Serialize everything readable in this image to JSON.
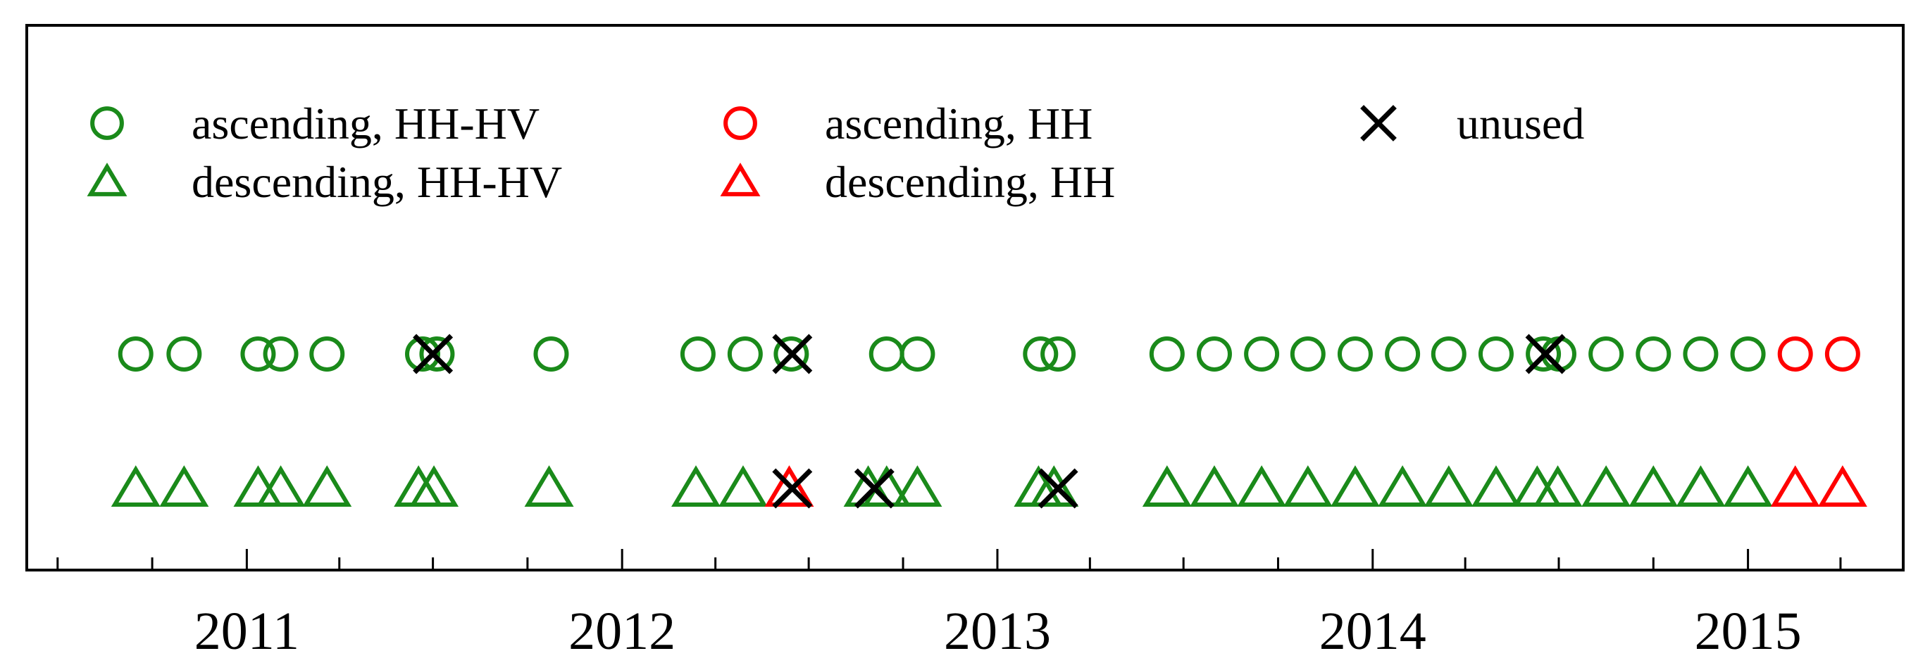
{
  "chart_data": {
    "type": "scatter",
    "title": "",
    "xlabel": "",
    "ylabel": "",
    "x_axis": {
      "type": "date",
      "range": [
        "2010-06-01",
        "2015-06-01"
      ],
      "tick_labels": [
        "2011",
        "2012",
        "2013",
        "2014",
        "2015"
      ],
      "major_ticks": [
        "2011-01-01",
        "2012-01-01",
        "2013-01-01",
        "2014-01-01",
        "2015-01-01"
      ],
      "minor_ticks_per_year": 4
    },
    "y_axis": {
      "visible": false
    },
    "grid": false,
    "legend": {
      "placement": "top",
      "entries": [
        {
          "label": "ascending, HH-HV",
          "marker": "circle",
          "color": "#1a8a1a"
        },
        {
          "label": "ascending, HH",
          "marker": "circle",
          "color": "#ff0000"
        },
        {
          "label": "unused",
          "marker": "x",
          "color": "#000000"
        },
        {
          "label": "descending, HH-HV",
          "marker": "triangle",
          "color": "#1a8a1a"
        },
        {
          "label": "descending, HH",
          "marker": "triangle",
          "color": "#ff0000"
        }
      ]
    },
    "series": [
      {
        "name": "ascending, HH-HV",
        "marker": "circle",
        "color": "#1a8a1a",
        "row": "ascending",
        "x": [
          "2010-09-15",
          "2010-11-01",
          "2011-01-12",
          "2011-02-03",
          "2011-03-20",
          "2011-06-21",
          "2011-07-05",
          "2011-10-24",
          "2012-03-15",
          "2012-04-30",
          "2012-06-14",
          "2012-09-15",
          "2012-10-15",
          "2013-02-12",
          "2013-03-01",
          "2013-06-15",
          "2013-07-31",
          "2013-09-15",
          "2013-10-30",
          "2013-12-15",
          "2014-01-30",
          "2014-03-16",
          "2014-05-01",
          "2014-06-16",
          "2014-07-01",
          "2014-08-16",
          "2014-10-01",
          "2014-11-16",
          "2015-01-01"
        ]
      },
      {
        "name": "ascending, HH",
        "marker": "circle",
        "color": "#ff0000",
        "row": "ascending",
        "x": [
          "2015-02-16",
          "2015-04-03"
        ]
      },
      {
        "name": "descending, HH-HV",
        "marker": "triangle",
        "color": "#1a8a1a",
        "row": "descending",
        "x": [
          "2010-09-15",
          "2010-11-01",
          "2011-01-12",
          "2011-02-03",
          "2011-03-20",
          "2011-06-17",
          "2011-07-02",
          "2011-10-22",
          "2012-03-13",
          "2012-04-28",
          "2012-08-28",
          "2012-09-15",
          "2012-10-15",
          "2013-02-10",
          "2013-02-25",
          "2013-06-15",
          "2013-07-31",
          "2013-09-15",
          "2013-10-30",
          "2013-12-15",
          "2014-01-30",
          "2014-03-16",
          "2014-05-01",
          "2014-06-10",
          "2014-06-30",
          "2014-08-16",
          "2014-10-01",
          "2014-11-16",
          "2015-01-01"
        ]
      },
      {
        "name": "descending, HH",
        "marker": "triangle",
        "color": "#ff0000",
        "row": "descending",
        "x": [
          "2012-06-12",
          "2015-02-16",
          "2015-04-03"
        ]
      },
      {
        "name": "unused",
        "marker": "x",
        "color": "#000000",
        "points": [
          {
            "x": "2011-07-01",
            "row": "ascending"
          },
          {
            "x": "2012-06-15",
            "row": "ascending"
          },
          {
            "x": "2014-06-18",
            "row": "ascending"
          },
          {
            "x": "2012-06-15",
            "row": "descending"
          },
          {
            "x": "2012-09-03",
            "row": "descending"
          },
          {
            "x": "2013-03-01",
            "row": "descending"
          }
        ]
      }
    ]
  }
}
